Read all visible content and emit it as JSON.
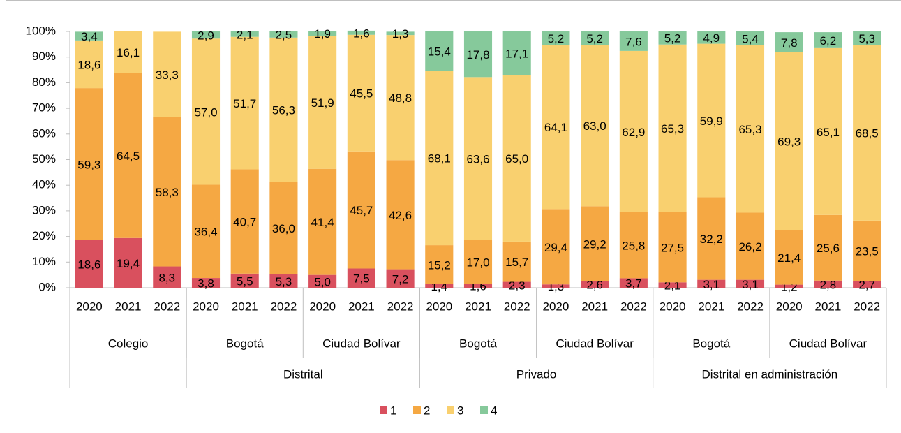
{
  "chart_data": {
    "type": "stacked_bar",
    "category_tree": [
      {
        "name": null,
        "groups": [
          {
            "name": "Colegio",
            "years": [
              "2020",
              "2021",
              "2022"
            ]
          }
        ]
      },
      {
        "name": "Distrital",
        "groups": [
          {
            "name": "Bogotá",
            "years": [
              "2020",
              "2021",
              "2022"
            ]
          },
          {
            "name": "Ciudad Bolívar",
            "years": [
              "2020",
              "2021",
              "2022"
            ]
          }
        ]
      },
      {
        "name": "Privado",
        "groups": [
          {
            "name": "Bogotá",
            "years": [
              "2020",
              "2021",
              "2022"
            ]
          },
          {
            "name": "Ciudad Bolívar",
            "years": [
              "2020",
              "2021",
              "2022"
            ]
          }
        ]
      },
      {
        "name": "Distrital en administración",
        "groups": [
          {
            "name": "Bogotá",
            "years": [
              "2020",
              "2021",
              "2022"
            ]
          },
          {
            "name": "Ciudad Bolívar",
            "years": [
              "2020",
              "2021",
              "2022"
            ]
          }
        ]
      }
    ],
    "series": [
      {
        "name": "1",
        "color": "#d9505e",
        "values": [
          18.6,
          19.4,
          8.3,
          3.8,
          5.5,
          5.3,
          5.0,
          7.5,
          7.2,
          1.4,
          1.6,
          2.3,
          1.3,
          2.6,
          3.7,
          2.1,
          3.1,
          3.1,
          1.2,
          2.8,
          2.7
        ],
        "value_labels": [
          "18,6",
          "19,4",
          "8,3",
          "3,8",
          "5,5",
          "5,3",
          "5,0",
          "7,5",
          "7,2",
          "1,4",
          "1,6",
          "2,3",
          "1,3",
          "2,6",
          "3,7",
          "2,1",
          "3,1",
          "3,1",
          "1,2",
          "2,8",
          "2,7"
        ]
      },
      {
        "name": "2",
        "color": "#f5a843",
        "values": [
          59.3,
          64.5,
          58.3,
          36.4,
          40.7,
          36.0,
          41.4,
          45.7,
          42.6,
          15.2,
          17.0,
          15.7,
          29.4,
          29.2,
          25.8,
          27.5,
          32.2,
          26.2,
          21.4,
          25.6,
          23.5
        ],
        "value_labels": [
          "59,3",
          "64,5",
          "58,3",
          "36,4",
          "40,7",
          "36,0",
          "41,4",
          "45,7",
          "42,6",
          "15,2",
          "17,0",
          "15,7",
          "29,4",
          "29,2",
          "25,8",
          "27,5",
          "32,2",
          "26,2",
          "21,4",
          "25,6",
          "23,5"
        ]
      },
      {
        "name": "3",
        "color": "#f9d06f",
        "values": [
          18.6,
          16.1,
          33.3,
          57.0,
          51.7,
          56.3,
          51.9,
          45.5,
          48.8,
          68.1,
          63.6,
          65.0,
          64.1,
          63.0,
          62.9,
          65.3,
          59.9,
          65.3,
          69.3,
          65.1,
          68.5
        ],
        "value_labels": [
          "18,6",
          "16,1",
          "33,3",
          "57,0",
          "51,7",
          "56,3",
          "51,9",
          "45,5",
          "48,8",
          "68,1",
          "63,6",
          "65,0",
          "64,1",
          "63,0",
          "62,9",
          "65,3",
          "59,9",
          "65,3",
          "69,3",
          "65,1",
          "68,5"
        ]
      },
      {
        "name": "4",
        "color": "#86c99b",
        "values": [
          3.4,
          null,
          null,
          2.9,
          2.1,
          2.5,
          1.9,
          1.6,
          1.3,
          15.4,
          17.8,
          17.1,
          5.2,
          5.2,
          7.6,
          5.2,
          4.9,
          5.4,
          7.8,
          6.2,
          5.3
        ],
        "value_labels": [
          "3,4",
          null,
          null,
          "2,9",
          "2,1",
          "2,5",
          "1,9",
          "1,6",
          "1,3",
          "15,4",
          "17,8",
          "17,1",
          "5,2",
          "5,2",
          "7,6",
          "5,2",
          "4,9",
          "5,4",
          "7,8",
          "6,2",
          "5,3"
        ]
      }
    ],
    "ylim": [
      0,
      100
    ],
    "yticks": [
      {
        "value": 0,
        "label": "0%"
      },
      {
        "value": 10,
        "label": "10%"
      },
      {
        "value": 20,
        "label": "20%"
      },
      {
        "value": 30,
        "label": "30%"
      },
      {
        "value": 40,
        "label": "40%"
      },
      {
        "value": 50,
        "label": "50%"
      },
      {
        "value": 60,
        "label": "60%"
      },
      {
        "value": 70,
        "label": "70%"
      },
      {
        "value": 80,
        "label": "80%"
      },
      {
        "value": 90,
        "label": "90%"
      },
      {
        "value": 100,
        "label": "100%"
      }
    ],
    "legend": "bottom"
  }
}
